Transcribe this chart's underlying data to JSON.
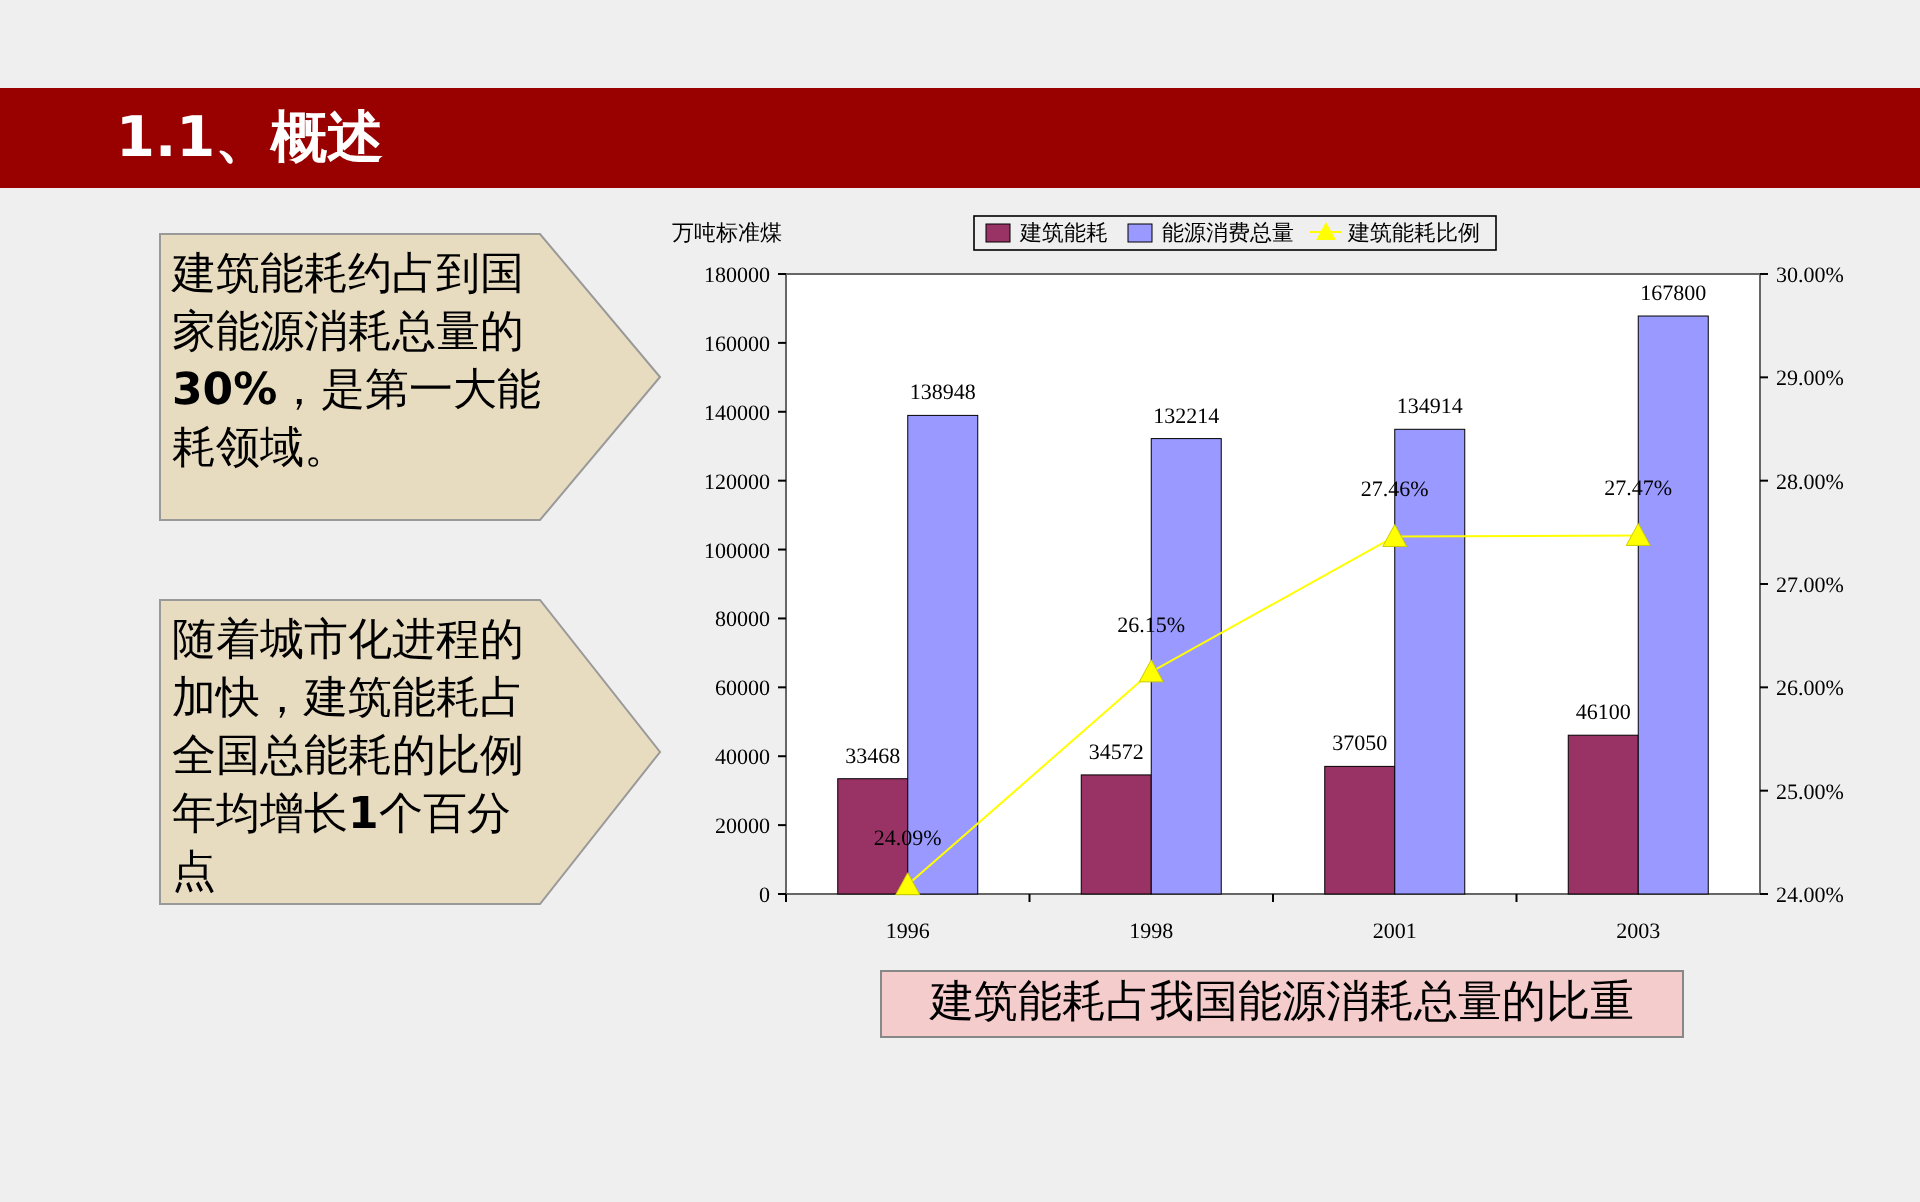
{
  "chart_data": {
    "type": "bar",
    "title": "1.1、概述",
    "ylabel": "万吨标准煤",
    "categories": [
      "1996",
      "1998",
      "2001",
      "2003"
    ],
    "series": [
      {
        "name": "建筑能耗",
        "color": "#993366",
        "values": [
          33468,
          34572,
          37050,
          46100
        ],
        "value_labels": [
          "33468",
          "34572",
          "37050",
          "46100"
        ]
      },
      {
        "name": "能源消费总量",
        "color": "#9999ff",
        "values": [
          138948,
          132214,
          134914,
          167800
        ],
        "value_labels": [
          "138948",
          "132214",
          "134914",
          "167800"
        ]
      },
      {
        "name": "建筑能耗比例",
        "type": "line",
        "axis": "y2",
        "color": "#ffff00",
        "marker": "triangle",
        "values": [
          24.09,
          26.15,
          27.46,
          27.47
        ],
        "value_labels": [
          "24.09%",
          "26.15%",
          "27.46%",
          "27.47%"
        ]
      }
    ],
    "ylim": [
      0,
      180000
    ],
    "yticks": [
      0,
      20000,
      40000,
      60000,
      80000,
      100000,
      120000,
      140000,
      160000,
      180000
    ],
    "y2lim": [
      24,
      30
    ],
    "y2ticks": [
      {
        "value": 24,
        "label": "24.00%"
      },
      {
        "value": 25,
        "label": "25.00%"
      },
      {
        "value": 26,
        "label": "26.00%"
      },
      {
        "value": 27,
        "label": "27.00%"
      },
      {
        "value": 28,
        "label": "28.00%"
      },
      {
        "value": 29,
        "label": "29.00%"
      },
      {
        "value": 30,
        "label": "30.00%"
      }
    ],
    "legend": "top",
    "grid": false,
    "annotations": [
      "建筑能耗约占到国家能源消耗总量的**30%**，是第一大能耗领域。",
      "随着城市化进程的加快，建筑能耗占全国总能耗的比例年均增长**1**个百分点",
      "建筑能耗占我国能源消耗总量的比重"
    ]
  }
}
